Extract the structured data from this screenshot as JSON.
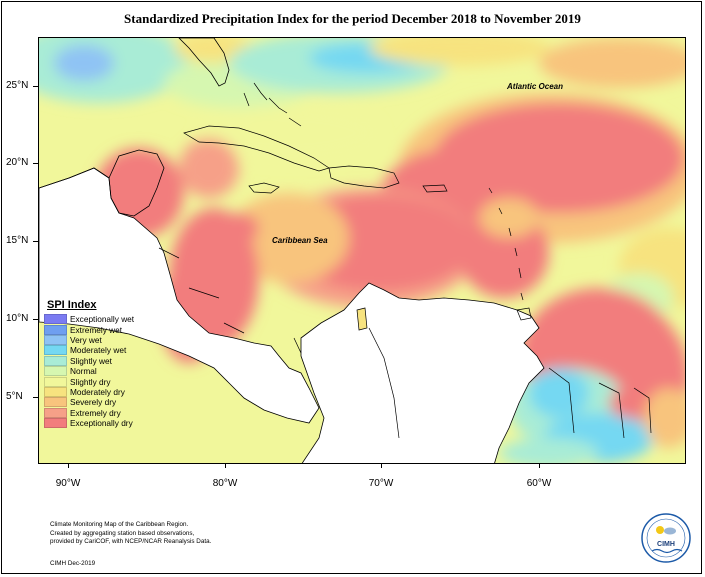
{
  "title": "Standardized Precipitation Index for the period December 2018 to November 2019",
  "lat_labels": [
    "25°N",
    "20°N",
    "15°N",
    "10°N",
    "5°N"
  ],
  "lon_labels": [
    "90°W",
    "80°W",
    "70°W",
    "60°W"
  ],
  "labels": {
    "atlantic": "Atlantic Ocean",
    "caribbean": "Caribbean Sea"
  },
  "legend": {
    "title": "SPI Index",
    "items": [
      {
        "label": "Exceptionally wet",
        "color": "#7b7bf2"
      },
      {
        "label": "Extremely wet",
        "color": "#6f9ff0"
      },
      {
        "label": "Very wet",
        "color": "#8fc3f4"
      },
      {
        "label": "Moderately wet",
        "color": "#74d8f2"
      },
      {
        "label": "Slightly wet",
        "color": "#a9ecd6"
      },
      {
        "label": "Normal",
        "color": "#d6f7b0"
      },
      {
        "label": "Slightly dry",
        "color": "#f1f79b"
      },
      {
        "label": "Moderately dry",
        "color": "#f7e37f"
      },
      {
        "label": "Severely dry",
        "color": "#f8c47d"
      },
      {
        "label": "Extremely dry",
        "color": "#f6a088"
      },
      {
        "label": "Exceptionally dry",
        "color": "#f27d7d"
      }
    ]
  },
  "credit": {
    "line1": "Climate Monitoring Map of the Caribbean Region.",
    "line2": "Created by aggregating station based observations,",
    "line3": "provided by CariCOF, with NCEP/NCAR Reanalysis Data.",
    "date": "CIMH Dec-2019"
  },
  "logo": {
    "text": "CIMH"
  }
}
